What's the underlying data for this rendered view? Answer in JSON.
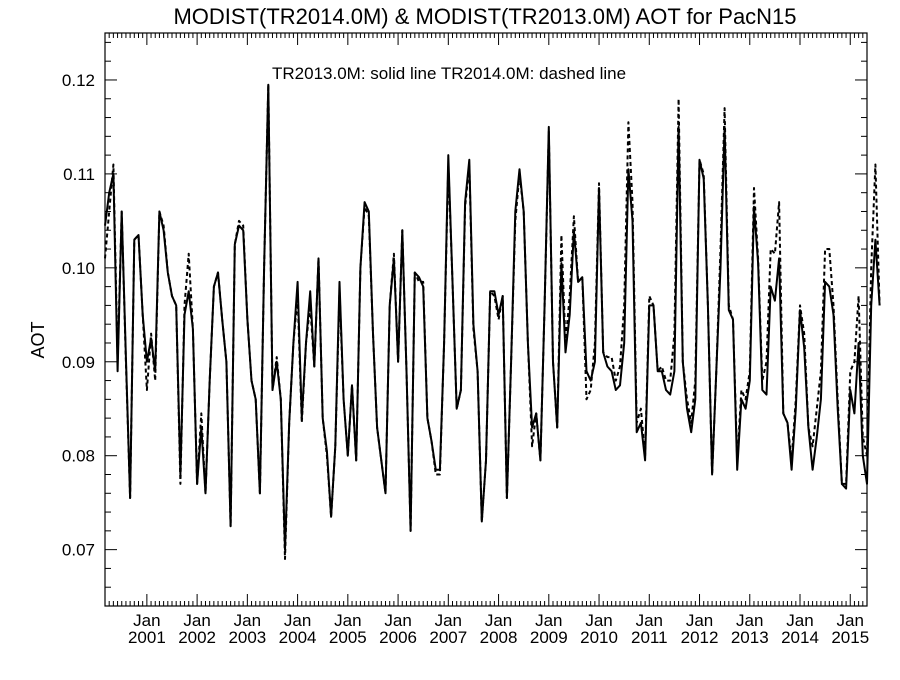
{
  "chart_data": {
    "type": "line",
    "title": "MODIST(TR2014.0M) & MODIST(TR2013.0M)  AOT for PacN15",
    "annotation": "TR2013.0M: solid line   TR2014.0M: dashed line",
    "ylabel": "AOT",
    "xlabel": "",
    "x_unit": "month",
    "x_start": "2000-03",
    "xlim": [
      "2000-03",
      "2015-05"
    ],
    "ylim": [
      0.064,
      0.125
    ],
    "yticks": [
      0.07,
      0.08,
      0.09,
      0.1,
      0.11,
      0.12
    ],
    "ytick_labels": [
      "0.07",
      "0.08",
      "0.09",
      "0.10",
      "0.11",
      "0.12"
    ],
    "xticks": [
      {
        "date": "2001-01",
        "line1": "Jan",
        "line2": "2001"
      },
      {
        "date": "2002-01",
        "line1": "Jan",
        "line2": "2002"
      },
      {
        "date": "2003-01",
        "line1": "Jan",
        "line2": "2003"
      },
      {
        "date": "2004-01",
        "line1": "Jan",
        "line2": "2004"
      },
      {
        "date": "2005-01",
        "line1": "Jan",
        "line2": "2005"
      },
      {
        "date": "2006-01",
        "line1": "Jan",
        "line2": "2006"
      },
      {
        "date": "2007-01",
        "line1": "Jan",
        "line2": "2007"
      },
      {
        "date": "2008-01",
        "line1": "Jan",
        "line2": "2008"
      },
      {
        "date": "2009-01",
        "line1": "Jan",
        "line2": "2009"
      },
      {
        "date": "2010-01",
        "line1": "Jan",
        "line2": "2010"
      },
      {
        "date": "2011-01",
        "line1": "Jan",
        "line2": "2011"
      },
      {
        "date": "2012-01",
        "line1": "Jan",
        "line2": "2012"
      },
      {
        "date": "2013-01",
        "line1": "Jan",
        "line2": "2013"
      },
      {
        "date": "2014-01",
        "line1": "Jan",
        "line2": "2014"
      },
      {
        "date": "2015-01",
        "line1": "Jan",
        "line2": "2015"
      }
    ],
    "series": [
      {
        "name": "TR2013.0M",
        "style": "solid",
        "color": "#000000",
        "values": [
          0.1045,
          0.108,
          0.11,
          0.089,
          0.106,
          0.0905,
          0.0755,
          0.103,
          0.1035,
          0.095,
          0.09,
          0.0925,
          0.089,
          0.106,
          0.104,
          0.0995,
          0.097,
          0.096,
          0.078,
          0.095,
          0.0975,
          0.0935,
          0.077,
          0.083,
          0.076,
          0.088,
          0.098,
          0.0995,
          0.0945,
          0.09,
          0.0725,
          0.1025,
          0.1045,
          0.104,
          0.0945,
          0.088,
          0.086,
          0.076,
          0.1,
          0.1195,
          0.087,
          0.09,
          0.086,
          0.07,
          0.0835,
          0.092,
          0.0985,
          0.084,
          0.092,
          0.0975,
          0.0895,
          0.101,
          0.084,
          0.0805,
          0.0735,
          0.081,
          0.0985,
          0.086,
          0.08,
          0.0875,
          0.0795,
          0.1,
          0.107,
          0.106,
          0.093,
          0.083,
          0.0795,
          0.076,
          0.096,
          0.101,
          0.09,
          0.104,
          0.089,
          0.072,
          0.0995,
          0.099,
          0.098,
          0.084,
          0.0815,
          0.0785,
          0.0785,
          0.092,
          0.112,
          0.0985,
          0.085,
          0.087,
          0.107,
          0.1115,
          0.094,
          0.089,
          0.073,
          0.0795,
          0.0975,
          0.0975,
          0.095,
          0.097,
          0.0755,
          0.09,
          0.106,
          0.1105,
          0.106,
          0.092,
          0.083,
          0.0845,
          0.0795,
          0.096,
          0.115,
          0.09,
          0.083,
          0.1005,
          0.091,
          0.095,
          0.104,
          0.0985,
          0.099,
          0.089,
          0.088,
          0.09,
          0.1085,
          0.091,
          0.0895,
          0.089,
          0.087,
          0.0875,
          0.092,
          0.1105,
          0.105,
          0.0825,
          0.0835,
          0.0795,
          0.096,
          0.096,
          0.089,
          0.089,
          0.087,
          0.0865,
          0.089,
          0.115,
          0.09,
          0.085,
          0.0825,
          0.086,
          0.1115,
          0.1095,
          0.096,
          0.078,
          0.089,
          0.1,
          0.115,
          0.0955,
          0.0945,
          0.0785,
          0.086,
          0.085,
          0.088,
          0.1065,
          0.1005,
          0.087,
          0.0865,
          0.098,
          0.0965,
          0.101,
          0.0845,
          0.0835,
          0.0785,
          0.085,
          0.0955,
          0.0915,
          0.083,
          0.0785,
          0.082,
          0.086,
          0.0985,
          0.098,
          0.095,
          0.085,
          0.077,
          0.0765,
          0.087,
          0.0845,
          0.092,
          0.08,
          0.077,
          0.096,
          0.103,
          0.096
        ]
      },
      {
        "name": "TR2014.0M",
        "style": "dashed",
        "color": "#000000",
        "values": [
          0.101,
          0.106,
          0.111,
          0.09,
          0.106,
          0.09,
          0.0755,
          0.103,
          0.1035,
          0.095,
          0.087,
          0.093,
          0.088,
          0.106,
          0.1045,
          0.0995,
          0.097,
          0.096,
          0.077,
          0.096,
          0.1015,
          0.0935,
          0.077,
          0.0845,
          0.076,
          0.088,
          0.098,
          0.0995,
          0.0945,
          0.09,
          0.0725,
          0.1025,
          0.105,
          0.1045,
          0.0945,
          0.088,
          0.086,
          0.076,
          0.1,
          0.1195,
          0.087,
          0.0905,
          0.086,
          0.069,
          0.0835,
          0.092,
          0.097,
          0.0835,
          0.092,
          0.096,
          0.0895,
          0.101,
          0.084,
          0.08,
          0.0735,
          0.081,
          0.0975,
          0.086,
          0.08,
          0.0875,
          0.0795,
          0.1,
          0.1065,
          0.1055,
          0.093,
          0.083,
          0.0795,
          0.076,
          0.096,
          0.1015,
          0.09,
          0.104,
          0.089,
          0.072,
          0.0995,
          0.0985,
          0.0985,
          0.084,
          0.0815,
          0.078,
          0.078,
          0.092,
          0.111,
          0.0985,
          0.085,
          0.087,
          0.1065,
          0.111,
          0.0935,
          0.089,
          0.073,
          0.0795,
          0.0975,
          0.097,
          0.0945,
          0.097,
          0.0755,
          0.09,
          0.105,
          0.11,
          0.106,
          0.092,
          0.081,
          0.0845,
          0.0795,
          0.096,
          0.1145,
          0.09,
          0.083,
          0.1035,
          0.092,
          0.097,
          0.1055,
          0.0985,
          0.099,
          0.086,
          0.087,
          0.092,
          0.109,
          0.091,
          0.0905,
          0.0905,
          0.088,
          0.0895,
          0.096,
          0.1155,
          0.107,
          0.0835,
          0.085,
          0.08,
          0.097,
          0.096,
          0.089,
          0.0895,
          0.088,
          0.088,
          0.093,
          0.118,
          0.09,
          0.086,
          0.0835,
          0.088,
          0.1115,
          0.11,
          0.096,
          0.078,
          0.089,
          0.102,
          0.117,
          0.096,
          0.0945,
          0.0795,
          0.087,
          0.086,
          0.089,
          0.1085,
          0.101,
          0.088,
          0.09,
          0.102,
          0.1015,
          0.107,
          0.0845,
          0.0835,
          0.0795,
          0.086,
          0.096,
          0.093,
          0.083,
          0.081,
          0.085,
          0.089,
          0.102,
          0.102,
          0.096,
          0.086,
          0.077,
          0.077,
          0.089,
          0.09,
          0.097,
          0.082,
          0.08,
          0.1,
          0.111,
          0.096
        ]
      }
    ]
  }
}
